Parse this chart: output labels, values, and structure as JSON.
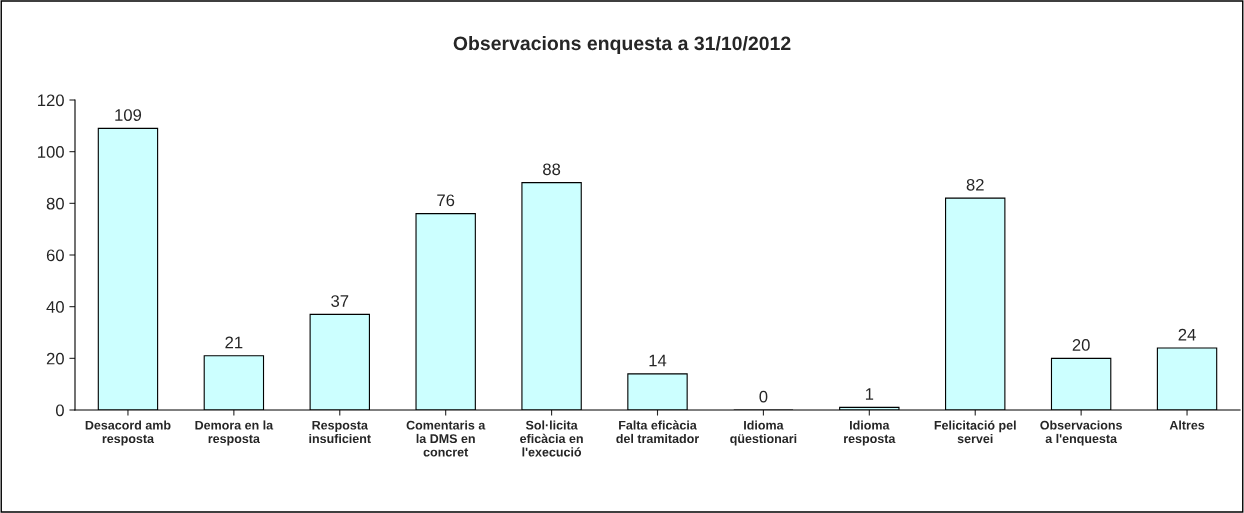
{
  "chart_data": {
    "type": "bar",
    "title": "Observacions enquesta a 31/10/2012",
    "categories": [
      "Desacord amb\nresposta",
      "Demora en la\nresposta",
      "Resposta\ninsuficient",
      "Comentaris a\nla DMS en\nconcret",
      "Sol·licita\neficàcia en\nl'execució",
      "Falta eficàcia\ndel tramitador",
      "Idioma\nqüestionari",
      "Idioma\nresposta",
      "Felicitació pel\nservei",
      "Observacions\na l'enquesta",
      "Altres"
    ],
    "values": [
      109,
      21,
      37,
      76,
      88,
      14,
      0,
      1,
      82,
      20,
      24
    ],
    "color": "#ccffff",
    "ylim": [
      0,
      120
    ],
    "yticks": [
      0,
      20,
      40,
      60,
      80,
      100,
      120
    ],
    "grid": false,
    "data_labels": true
  }
}
